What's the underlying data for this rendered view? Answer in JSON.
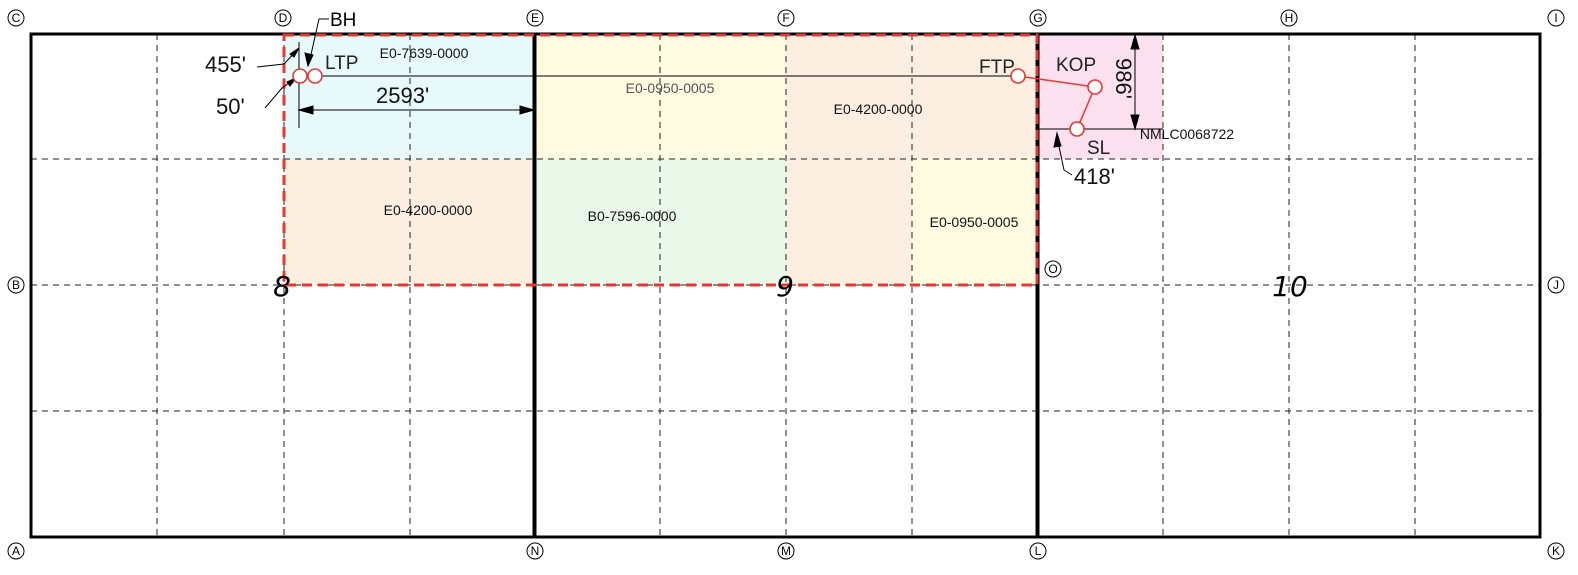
{
  "corners": {
    "top": [
      "C",
      "D",
      "E",
      "F",
      "G",
      "H",
      "I"
    ],
    "right": "J",
    "left": "B",
    "bottom": [
      "A",
      "N",
      "M",
      "L",
      "K"
    ],
    "center": "O"
  },
  "sections": [
    "8",
    "9",
    "10"
  ],
  "leases": [
    {
      "id": "E0-7639-0000",
      "fill": "#e8f9fb"
    },
    {
      "id": "E0-0950-0005",
      "fill": "#fefbe1"
    },
    {
      "id": "E0-4200-0000",
      "fill": "#fdeee2"
    },
    {
      "id": "E0-4200-0000",
      "fill": "#fdeee2"
    },
    {
      "id": "B0-7596-0000",
      "fill": "#eaf8ea"
    },
    {
      "id": "E0-0950-0005",
      "fill": "#fefbe1"
    },
    {
      "id": "NMLC0068722",
      "fill": "#fbe0ef"
    }
  ],
  "well_points": [
    "BH",
    "LTP",
    "FTP",
    "KOP",
    "SL"
  ],
  "dimensions": [
    "455'",
    "50'",
    "2593'",
    "986'",
    "418'"
  ],
  "colors": {
    "unit_boundary": "#e53935",
    "section_line": "#000000",
    "grid_line": "#222222",
    "well_marker": "#e53935"
  }
}
